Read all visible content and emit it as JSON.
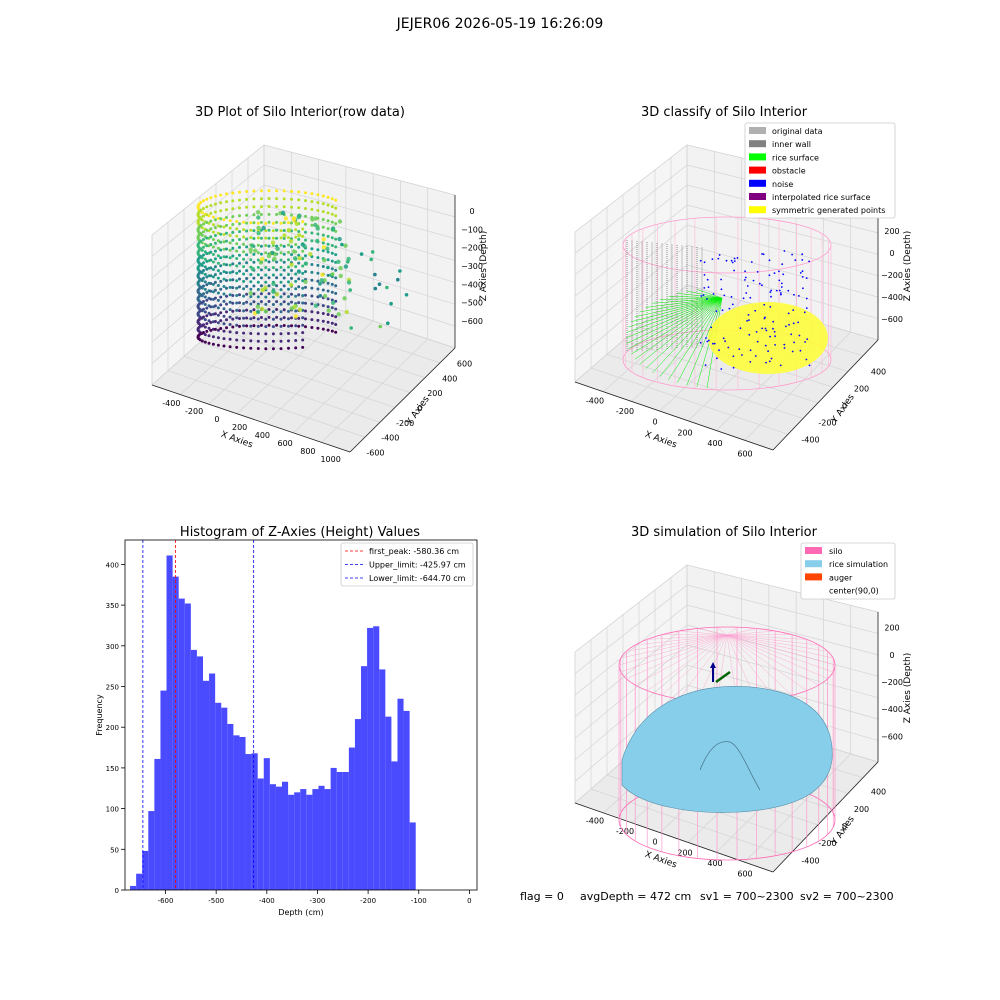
{
  "suptitle": "JEJER06 2026-05-19 16:26:09",
  "chart_data": [
    {
      "type": "scatter",
      "projection": "3d",
      "title": "3D Plot of Silo Interior(row data)",
      "xlabel": "X Axies",
      "ylabel": "Y Axies",
      "zlabel": "Z Axies (Depth)",
      "xticks": [
        "-400",
        "-200",
        "0",
        "200",
        "400",
        "600",
        "800",
        "1000"
      ],
      "yticks": [
        "-600",
        "-400",
        "-200",
        "0",
        "200",
        "400",
        "600"
      ],
      "zticks": [
        "0",
        "−100",
        "−200",
        "−300",
        "−400",
        "−500",
        "−600"
      ],
      "xlim": [
        -450,
        1000
      ],
      "ylim": [
        -600,
        600
      ],
      "zlim": [
        -650,
        0
      ],
      "colormap": "viridis",
      "grid": true
    },
    {
      "type": "scatter",
      "projection": "3d",
      "title": "3D classify of Silo Interior",
      "xlabel": "X Axies",
      "ylabel": "Y Axies",
      "zlabel": "Z Axies (Depth)",
      "xticks": [
        "-400",
        "-200",
        "0",
        "200",
        "400",
        "600"
      ],
      "yticks": [
        "-400",
        "-200",
        "0",
        "200",
        "400"
      ],
      "zticks": [
        "200",
        "0",
        "−200",
        "−400",
        "−600"
      ],
      "legend_position": "top-right",
      "grid": true,
      "legend": [
        {
          "label": "original data",
          "color": "#b0b0b0"
        },
        {
          "label": "inner wall",
          "color": "#808080"
        },
        {
          "label": "rice surface",
          "color": "#00ff00"
        },
        {
          "label": "obstacle",
          "color": "#ff0000"
        },
        {
          "label": "noise",
          "color": "#0000ff"
        },
        {
          "label": "interpolated rice surface",
          "color": "#800080"
        },
        {
          "label": "symmetric generated points",
          "color": "#ffff00"
        }
      ]
    },
    {
      "type": "bar",
      "title": "Histogram of Z-Axies (Height) Values",
      "xlabel": "Depth (cm)",
      "ylabel": "Frequency",
      "xlim": [
        -680,
        15
      ],
      "ylim": [
        0,
        430
      ],
      "xticks": [
        -600,
        -500,
        -400,
        -300,
        -200,
        -100,
        0
      ],
      "yticks": [
        0,
        50,
        100,
        150,
        200,
        250,
        300,
        350,
        400
      ],
      "bar_color": "#4a4aff",
      "bin_start": -670,
      "bin_width": 12,
      "values": [
        5,
        20,
        48,
        97,
        161,
        245,
        411,
        385,
        358,
        352,
        295,
        287,
        257,
        266,
        230,
        224,
        204,
        190,
        188,
        167,
        168,
        137,
        162,
        130,
        127,
        133,
        117,
        120,
        124,
        117,
        124,
        128,
        124,
        150,
        145,
        145,
        175,
        210,
        275,
        322,
        324,
        271,
        213,
        158,
        235,
        220,
        83
      ],
      "vlines": [
        {
          "label": "first_peak: -580.36 cm",
          "x": -580.36,
          "color": "#ff0000"
        },
        {
          "label": "Upper_limit: -425.97 cm",
          "x": -425.97,
          "color": "#0000ff"
        },
        {
          "label": "Lower_limit: -644.70 cm",
          "x": -644.7,
          "color": "#0000ff"
        }
      ],
      "legend_position": "top-right"
    },
    {
      "type": "surface",
      "projection": "3d",
      "title": "3D simulation of Silo Interior",
      "xlabel": "X Axies",
      "ylabel": "Y Axies",
      "zlabel": "Z Axies (Depth)",
      "xticks": [
        "-400",
        "-200",
        "0",
        "200",
        "400",
        "600"
      ],
      "yticks": [
        "-400",
        "-200",
        "0",
        "200",
        "400"
      ],
      "zticks": [
        "200",
        "0",
        "−200",
        "−400",
        "−600"
      ],
      "legend_position": "top-right",
      "grid": true,
      "legend": [
        {
          "label": "silo",
          "color": "#ff69b4"
        },
        {
          "label": "rice simulation",
          "color": "#87ceeb"
        },
        {
          "label": "auger",
          "color": "#ff4500"
        },
        {
          "label": "center(90,0)",
          "color": "#ffffff"
        }
      ],
      "footer": {
        "flag": "flag = 0",
        "avg_depth": "avgDepth = 472 cm",
        "sv1": "sv1 = 700~2300",
        "sv2": "sv2 = 700~2300"
      }
    }
  ]
}
